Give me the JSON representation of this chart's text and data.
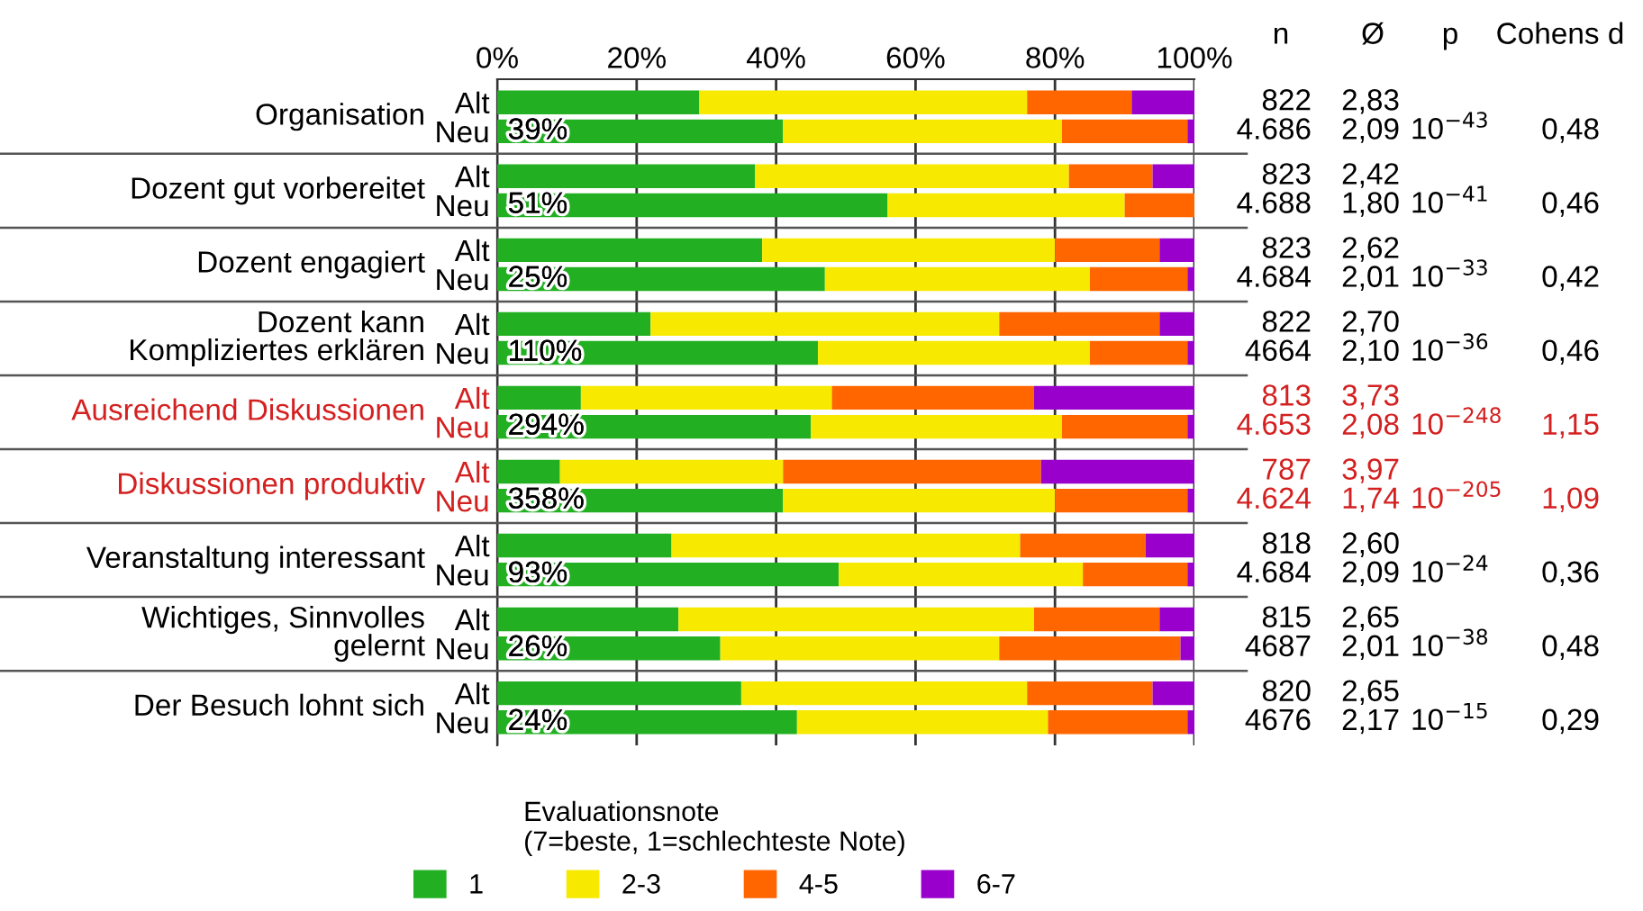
{
  "chart_data": {
    "type": "bar",
    "orientation": "horizontal",
    "stacked": true,
    "categories": [
      "Alt",
      "Neu",
      "Alt",
      "Neu",
      "Alt",
      "Neu",
      "Alt",
      "Neu",
      "Alt",
      "Neu",
      "Alt",
      "Neu",
      "Alt",
      "Neu",
      "Alt",
      "Neu",
      "Alt",
      "Neu"
    ],
    "series": [
      {
        "name": "1",
        "color": "#22b022",
        "values": [
          29,
          41,
          37,
          56,
          38,
          47,
          22,
          46,
          12,
          45,
          9,
          41,
          25,
          49,
          26,
          32,
          35,
          43
        ]
      },
      {
        "name": "2-3",
        "color": "#f7ea00",
        "values": [
          47,
          40,
          45,
          34,
          42,
          38,
          50,
          39,
          36,
          36,
          32,
          39,
          50,
          35,
          51,
          40,
          41,
          36
        ]
      },
      {
        "name": "4-5",
        "color": "#ff6600",
        "values": [
          15,
          18,
          12,
          10,
          15,
          14,
          23,
          14,
          29,
          18,
          37,
          19,
          18,
          15,
          18,
          26,
          18,
          20
        ]
      },
      {
        "name": "6-7",
        "color": "#9900cc",
        "values": [
          9,
          1,
          6,
          0,
          5,
          1,
          5,
          1,
          23,
          1,
          22,
          1,
          7,
          1,
          5,
          2,
          6,
          1
        ]
      }
    ],
    "xlim": [
      0,
      100
    ],
    "xticks": [
      {
        "value": 0,
        "label": "0%"
      },
      {
        "value": 20,
        "label": "20%"
      },
      {
        "value": 40,
        "label": "40%"
      },
      {
        "value": 60,
        "label": "60%"
      },
      {
        "value": 80,
        "label": "80%"
      },
      {
        "value": 100,
        "label": "100%"
      }
    ],
    "grid": "x",
    "legend": "bottom",
    "legend_title": "Evaluationsnote\n(7=beste, 1=schlechteste Note)",
    "annotations": [
      "Organisation",
      "Dozent gut vorbereitet",
      "Dozent engagiert",
      "Dozent kann\nKompliziertes erklären",
      "Ausreichend Diskussionen",
      "Diskussionen produktiv",
      "Veranstaltung interessant",
      "Wichtiges, Sinnvolles\ngelernt",
      "Der Besuch lohnt sich",
      "39%",
      "51%",
      "25%",
      "110%",
      "294%",
      "358%",
      "93%",
      "26%",
      "24%",
      "n",
      "Ø",
      "p",
      "Cohens d",
      "822",
      "2,83",
      "4.686",
      "2,09",
      "10$^{−43}$",
      "0,48",
      "823",
      "2,42",
      "4.688",
      "1,80",
      "10$^{−41}$",
      "0,46",
      "823",
      "2,62",
      "4.684",
      "2,01",
      "10$^{−33}$",
      "0,42",
      "822",
      "2,70",
      "4664",
      "2,10",
      "10$^{−36}$",
      "0,46",
      "813",
      "3,73",
      "4.653",
      "2,08",
      "10$^{−248}$",
      "1,15",
      "787",
      "3,97",
      "4.624",
      "1,74",
      "10$^{−205}$",
      "1,09",
      "818",
      "2,60",
      "4.684",
      "2,09",
      "10$^{−24}$",
      "0,36",
      "815",
      "2,65",
      "4687",
      "2,01",
      "10$^{−38}$",
      "0,48",
      "820",
      "2,65",
      "4676",
      "2,17",
      "10$^{−15}$",
      "0,29"
    ]
  }
}
